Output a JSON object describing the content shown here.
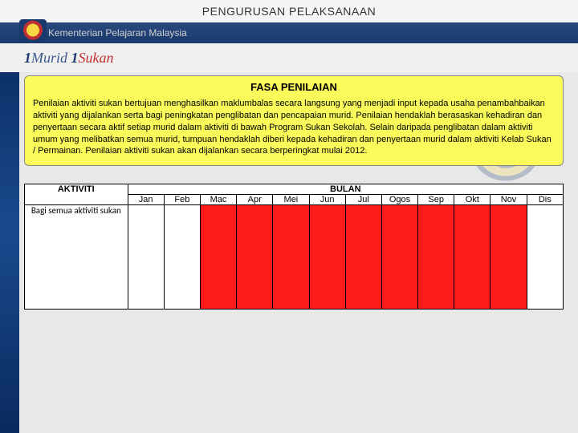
{
  "page_title": "PENGURUSAN PELAKSANAAN",
  "ministry": "Kementerian Pelajaran Malaysia",
  "logo": {
    "one1": "1",
    "murid": "Murid",
    "one2": " 1",
    "sukan": "Sukan"
  },
  "section": {
    "title": "FASA PENILAIAN",
    "body": "Penilaian aktiviti sukan bertujuan menghasilkan maklumbalas secara langsung yang menjadi input kepada usaha penambahbaikan aktiviti yang dijalankan serta bagi peningkatan penglibatan dan pencapaian murid. Penilaian hendaklah berasaskan kehadiran dan penyertaan secara aktif setiap murid dalam aktiviti di bawah Program Sukan Sekolah. Selain daripada penglibatan dalam aktiviti umum yang melibatkan semua murid, tumpuan hendaklah diberi kepada kehadiran dan penyertaan murid dalam aktiviti Kelab Sukan / Permainan. Penilaian aktiviti sukan akan dijalankan secara berperingkat mulai 2012."
  },
  "table": {
    "aktiviti_header": "AKTIVITI",
    "bulan_header": "BULAN",
    "months": [
      "Jan",
      "Feb",
      "Mac",
      "Apr",
      "Mei",
      "Jun",
      "Jul",
      "Ogos",
      "Sep",
      "Okt",
      "Nov",
      "Dis"
    ],
    "row_label": "Bagi semua aktiviti sukan",
    "fill_color": "#ff1a1a",
    "empty_color": "#ffffff",
    "fills": [
      false,
      false,
      true,
      true,
      true,
      true,
      true,
      true,
      true,
      true,
      true,
      false
    ]
  }
}
